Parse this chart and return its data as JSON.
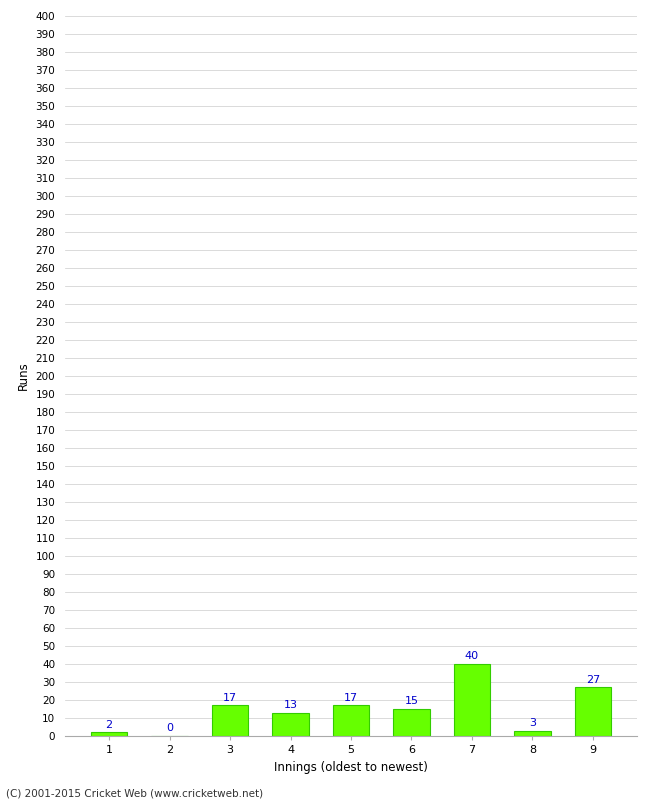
{
  "xlabel": "Innings (oldest to newest)",
  "ylabel": "Runs",
  "categories": [
    "1",
    "2",
    "3",
    "4",
    "5",
    "6",
    "7",
    "8",
    "9"
  ],
  "values": [
    2,
    0,
    17,
    13,
    17,
    15,
    40,
    3,
    27
  ],
  "bar_color": "#66ff00",
  "bar_edge_color": "#33cc00",
  "label_color": "#0000cc",
  "ylim": [
    0,
    400
  ],
  "ytick_step": 10,
  "background_color": "#ffffff",
  "grid_color": "#cccccc",
  "footer": "(C) 2001-2015 Cricket Web (www.cricketweb.net)"
}
